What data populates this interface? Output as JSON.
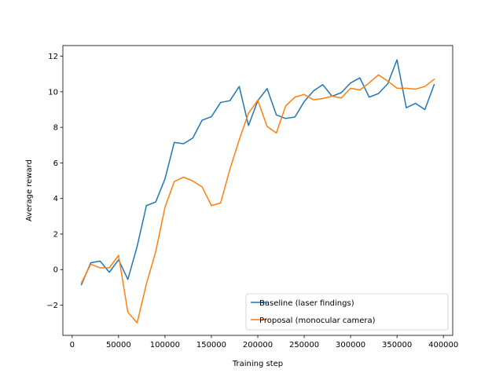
{
  "chart_data": {
    "type": "line",
    "title": "",
    "xlabel": "Training step",
    "ylabel": "Average reward",
    "xlim": [
      -10000,
      410000
    ],
    "ylim": [
      -3.7,
      12.6
    ],
    "xticks": [
      0,
      50000,
      100000,
      150000,
      200000,
      250000,
      300000,
      350000,
      400000
    ],
    "yticks": [
      -2,
      0,
      2,
      4,
      6,
      8,
      10,
      12
    ],
    "grid": false,
    "legend_position": "lower-right",
    "x": [
      10000,
      20000,
      30000,
      40000,
      50000,
      60000,
      70000,
      80000,
      90000,
      100000,
      110000,
      120000,
      130000,
      140000,
      150000,
      160000,
      170000,
      180000,
      190000,
      200000,
      210000,
      220000,
      230000,
      240000,
      250000,
      260000,
      270000,
      280000,
      290000,
      300000,
      310000,
      320000,
      330000,
      340000,
      350000,
      360000,
      370000,
      380000,
      390000
    ],
    "series": [
      {
        "name": "Baseline (laser findings)",
        "color": "#1f77b4",
        "values": [
          -0.85,
          0.38,
          0.48,
          -0.15,
          0.55,
          -0.55,
          1.3,
          3.6,
          3.8,
          5.1,
          7.15,
          7.08,
          7.4,
          8.4,
          8.6,
          9.4,
          9.5,
          10.3,
          8.1,
          9.5,
          10.18,
          8.7,
          8.5,
          8.58,
          9.45,
          10.05,
          10.4,
          9.75,
          9.95,
          10.5,
          10.78,
          9.7,
          9.9,
          10.45,
          11.8,
          9.1,
          9.35,
          9.0,
          10.4
        ]
      },
      {
        "name": "Proposal (monocular camera)",
        "color": "#ff7f0e",
        "values": [
          -0.75,
          0.3,
          0.1,
          0.1,
          0.8,
          -2.4,
          -3.0,
          -0.8,
          1.0,
          3.5,
          4.95,
          5.2,
          4.98,
          4.65,
          3.6,
          3.75,
          5.65,
          7.3,
          8.8,
          9.52,
          8.05,
          7.68,
          9.2,
          9.7,
          9.85,
          9.55,
          9.62,
          9.75,
          9.65,
          10.2,
          10.1,
          10.5,
          10.95,
          10.6,
          10.2,
          10.2,
          10.15,
          10.3,
          10.7
        ]
      }
    ]
  }
}
